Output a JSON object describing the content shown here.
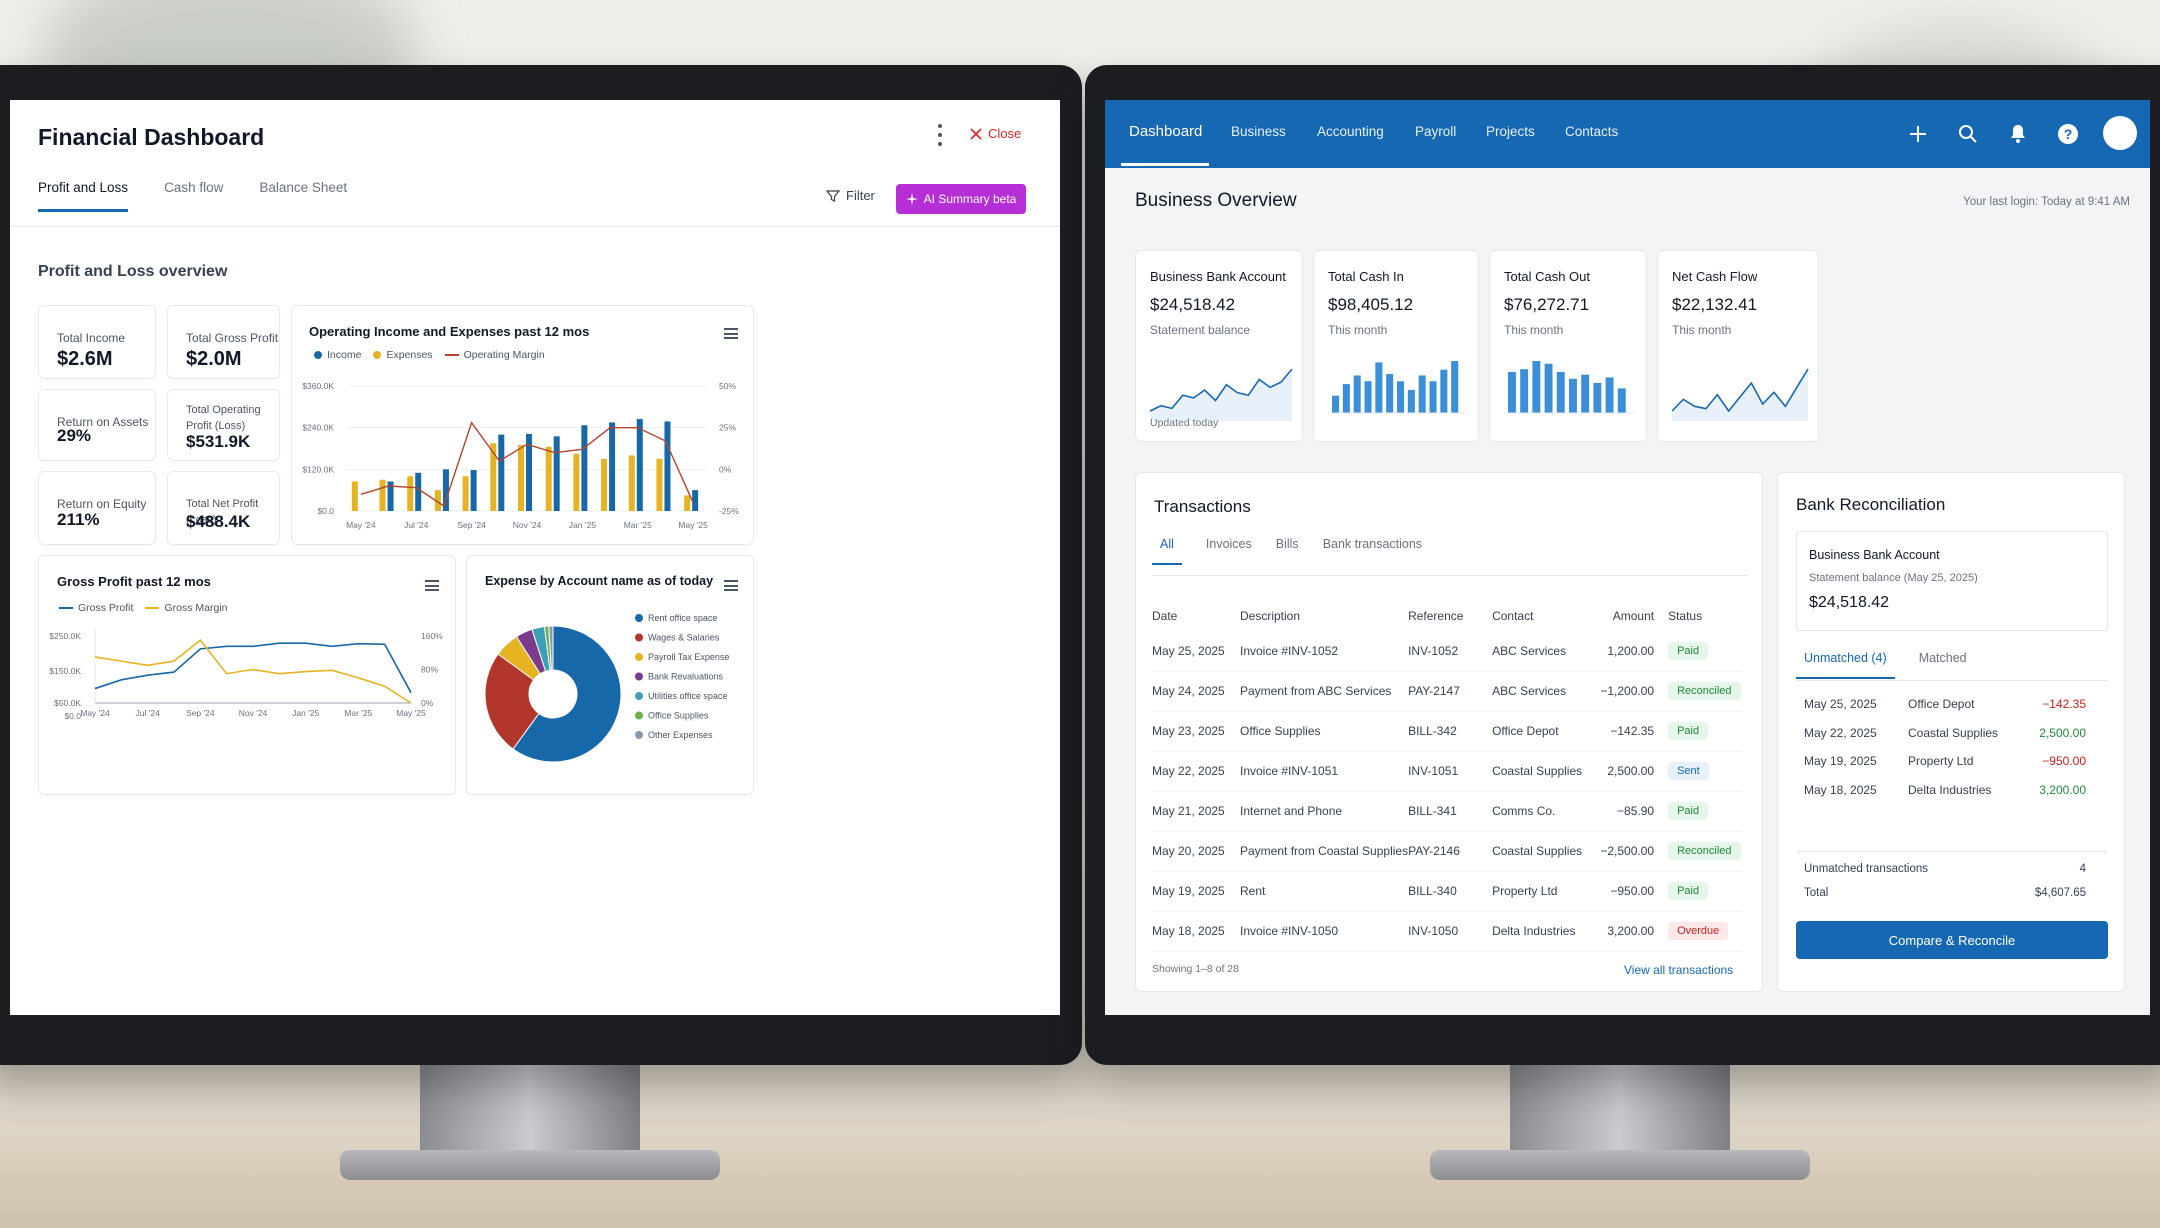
{
  "left": {
    "title": "Financial Dashboard",
    "close_label": "Close",
    "tabs": [
      "Profit and Loss",
      "Cash flow",
      "Balance Sheet"
    ],
    "filter_label": "Filter",
    "ai_label": "AI Summary beta",
    "section_title": "Profit and Loss overview",
    "kpis": [
      {
        "label": "Total Income",
        "value": "$2.6M"
      },
      {
        "label": "Total Gross Profit",
        "value": "$2.0M"
      },
      {
        "label": "Return on Assets",
        "value": "29%"
      },
      {
        "label": "Total Operating Profit (Loss)",
        "value": "$531.9K"
      },
      {
        "label": "Return on Equity",
        "value": "211%"
      },
      {
        "label": "Total Net Profit (Loss)",
        "value": "$488.4K"
      }
    ],
    "colors": {
      "income": "#1668a8",
      "expenses": "#e6b422",
      "margin": "#b3452c",
      "gross_margin": "#e6b422"
    }
  },
  "chart_data": [
    {
      "type": "bar",
      "title": "Operating Income and Expenses past 12 mos",
      "categories": [
        "May '24",
        "Jun '24",
        "Jul '24",
        "Aug '24",
        "Sep '24",
        "Oct '24",
        "Nov '24",
        "Dec '24",
        "Jan '25",
        "Feb '25",
        "Mar '25",
        "Apr '25",
        "May '25"
      ],
      "x_tick_labels": [
        "May '24",
        "Jul '24",
        "Sep '24",
        "Nov '24",
        "Jan '25",
        "Mar '25",
        "May '25"
      ],
      "series": [
        {
          "name": "Income",
          "values": [
            null,
            85,
            110,
            120,
            118,
            220,
            222,
            215,
            247,
            255,
            265,
            258,
            60
          ]
        },
        {
          "name": "Expenses",
          "values": [
            85,
            90,
            100,
            60,
            100,
            195,
            190,
            185,
            165,
            150,
            160,
            150,
            45
          ]
        },
        {
          "name": "Operating Margin",
          "axis": "right",
          "values": [
            -15,
            -10,
            -11,
            -22,
            28,
            5,
            15,
            10,
            12,
            25,
            25,
            17,
            -20
          ]
        }
      ],
      "ylim": [
        0,
        360
      ],
      "y_tick_labels": [
        "$0.0",
        "$120.0K",
        "$240.0K",
        "$360.0K"
      ],
      "y2lim": [
        -25,
        50
      ],
      "y2_tick_labels": [
        "-25%",
        "0%",
        "25%",
        "50%"
      ],
      "legend": "top-left"
    },
    {
      "type": "line",
      "title": "Gross Profit past 12 mos",
      "x_tick_labels": [
        "May '24",
        "Jul '24",
        "Sep '24",
        "Nov '24",
        "Jan '25",
        "Mar '25",
        "May '25"
      ],
      "series": [
        {
          "name": "Gross Profit",
          "values": [
            56,
            90,
            108,
            120,
            210,
            220,
            220,
            232,
            232,
            220,
            230,
            228,
            40
          ]
        },
        {
          "name": "Gross Margin",
          "axis": "right",
          "values": [
            110,
            100,
            90,
            100,
            150,
            70,
            80,
            70,
            75,
            78,
            60,
            40,
            0
          ]
        }
      ],
      "ylim": [
        0,
        260
      ],
      "y_tick_labels": [
        "$0.0",
        "$50.0K",
        "$150.0K",
        "$250.0K"
      ],
      "y2lim": [
        0,
        160
      ],
      "y2_tick_labels": [
        "0%",
        "80%",
        "160%"
      ],
      "legend": "top-left"
    },
    {
      "type": "pie",
      "title": "Expense by Account name as of today",
      "categories": [
        "Rent office space",
        "Wages & Salaries",
        "Payroll Tax Expense",
        "Bank Revaluations",
        "Utilities office space",
        "Office Supplies",
        "Other Expenses"
      ],
      "values": [
        60,
        25,
        6,
        4,
        3,
        1,
        1
      ],
      "colors": [
        "#1668a8",
        "#b3362c",
        "#e6b422",
        "#7c3a8c",
        "#3aa0b8",
        "#6bb04a",
        "#8898a8"
      ],
      "legend": "right"
    },
    {
      "type": "line",
      "title": "Business Bank Account",
      "values": [
        20,
        22,
        21,
        26,
        25,
        28,
        24,
        30,
        27,
        26,
        32,
        29,
        31,
        36
      ],
      "style": "area"
    },
    {
      "type": "bar",
      "title": "Total Cash In",
      "values": [
        12,
        20,
        26,
        22,
        35,
        27,
        22,
        16,
        26,
        22,
        30,
        36
      ]
    },
    {
      "type": "bar",
      "title": "Total Cash Out",
      "values": [
        30,
        32,
        38,
        36,
        30,
        25,
        28,
        22,
        26,
        18
      ]
    },
    {
      "type": "line",
      "title": "Net Cash Flow",
      "values": [
        20,
        25,
        22,
        21,
        27,
        20,
        26,
        32,
        23,
        28,
        22,
        30,
        38
      ],
      "style": "area"
    }
  ],
  "right": {
    "nav": [
      "Dashboard",
      "Business",
      "Accounting",
      "Payroll",
      "Projects",
      "Contacts"
    ],
    "page_title": "Business Overview",
    "last_login": "Your last login: Today at 9:41 AM",
    "cards": [
      {
        "label": "Business Bank Account",
        "value": "$24,518.42",
        "sub": "Statement balance",
        "updated": "Updated today"
      },
      {
        "label": "Total Cash In",
        "value": "$98,405.12",
        "sub": "This month"
      },
      {
        "label": "Total Cash Out",
        "value": "$76,272.71",
        "sub": "This month"
      },
      {
        "label": "Net Cash Flow",
        "value": "$22,132.41",
        "sub": "This month"
      }
    ],
    "transactions": {
      "title": "Transactions",
      "tabs": [
        "All",
        "Invoices",
        "Bills",
        "Bank transactions"
      ],
      "headers": [
        "Date",
        "Description",
        "Reference",
        "Contact",
        "Amount",
        "Status"
      ],
      "rows": [
        {
          "date": "May 25, 2025",
          "desc": "Invoice #INV-1052",
          "ref": "INV-1052",
          "contact": "ABC Services",
          "amount": "1,200.00",
          "status": "Paid"
        },
        {
          "date": "May 24, 2025",
          "desc": "Payment from ABC Services",
          "ref": "PAY-2147",
          "contact": "ABC Services",
          "amount": "−1,200.00",
          "status": "Reconciled"
        },
        {
          "date": "May 23, 2025",
          "desc": "Office Supplies",
          "ref": "BILL-342",
          "contact": "Office Depot",
          "amount": "−142.35",
          "status": "Paid"
        },
        {
          "date": "May 22, 2025",
          "desc": "Invoice #INV-1051",
          "ref": "INV-1051",
          "contact": "Coastal Supplies",
          "amount": "2,500.00",
          "status": "Sent"
        },
        {
          "date": "May 21, 2025",
          "desc": "Internet and Phone",
          "ref": "BILL-341",
          "contact": "Comms Co.",
          "amount": "−85.90",
          "status": "Paid"
        },
        {
          "date": "May 20, 2025",
          "desc": "Payment from Coastal Supplies",
          "ref": "PAY-2146",
          "contact": "Coastal Supplies",
          "amount": "−2,500.00",
          "status": "Reconciled"
        },
        {
          "date": "May 19, 2025",
          "desc": "Rent",
          "ref": "BILL-340",
          "contact": "Property Ltd",
          "amount": "−950.00",
          "status": "Paid"
        },
        {
          "date": "May 18, 2025",
          "desc": "Invoice #INV-1050",
          "ref": "INV-1050",
          "contact": "Delta Industries",
          "amount": "3,200.00",
          "status": "Overdue"
        }
      ],
      "showing": "Showing 1–8 of 28",
      "view_all": "View all transactions"
    },
    "recon": {
      "title": "Bank Reconciliation",
      "account": "Business Bank Account",
      "stmt": "Statement balance (May 25, 2025)",
      "balance": "$24,518.42",
      "tabs": [
        "Unmatched (4)",
        "Matched"
      ],
      "rows": [
        {
          "date": "May 25, 2025",
          "name": "Office Depot",
          "amount": "−142.35",
          "sign": "neg"
        },
        {
          "date": "May 22, 2025",
          "name": "Coastal Supplies",
          "amount": "2,500.00",
          "sign": "pos"
        },
        {
          "date": "May 19, 2025",
          "name": "Property Ltd",
          "amount": "−950.00",
          "sign": "neg"
        },
        {
          "date": "May 18, 2025",
          "name": "Delta Industries",
          "amount": "3,200.00",
          "sign": "pos"
        }
      ],
      "unmatched_label": "Unmatched transactions",
      "unmatched_count": "4",
      "total_label": "Total",
      "total": "$4,607.65",
      "button": "Compare & Reconcile"
    }
  }
}
